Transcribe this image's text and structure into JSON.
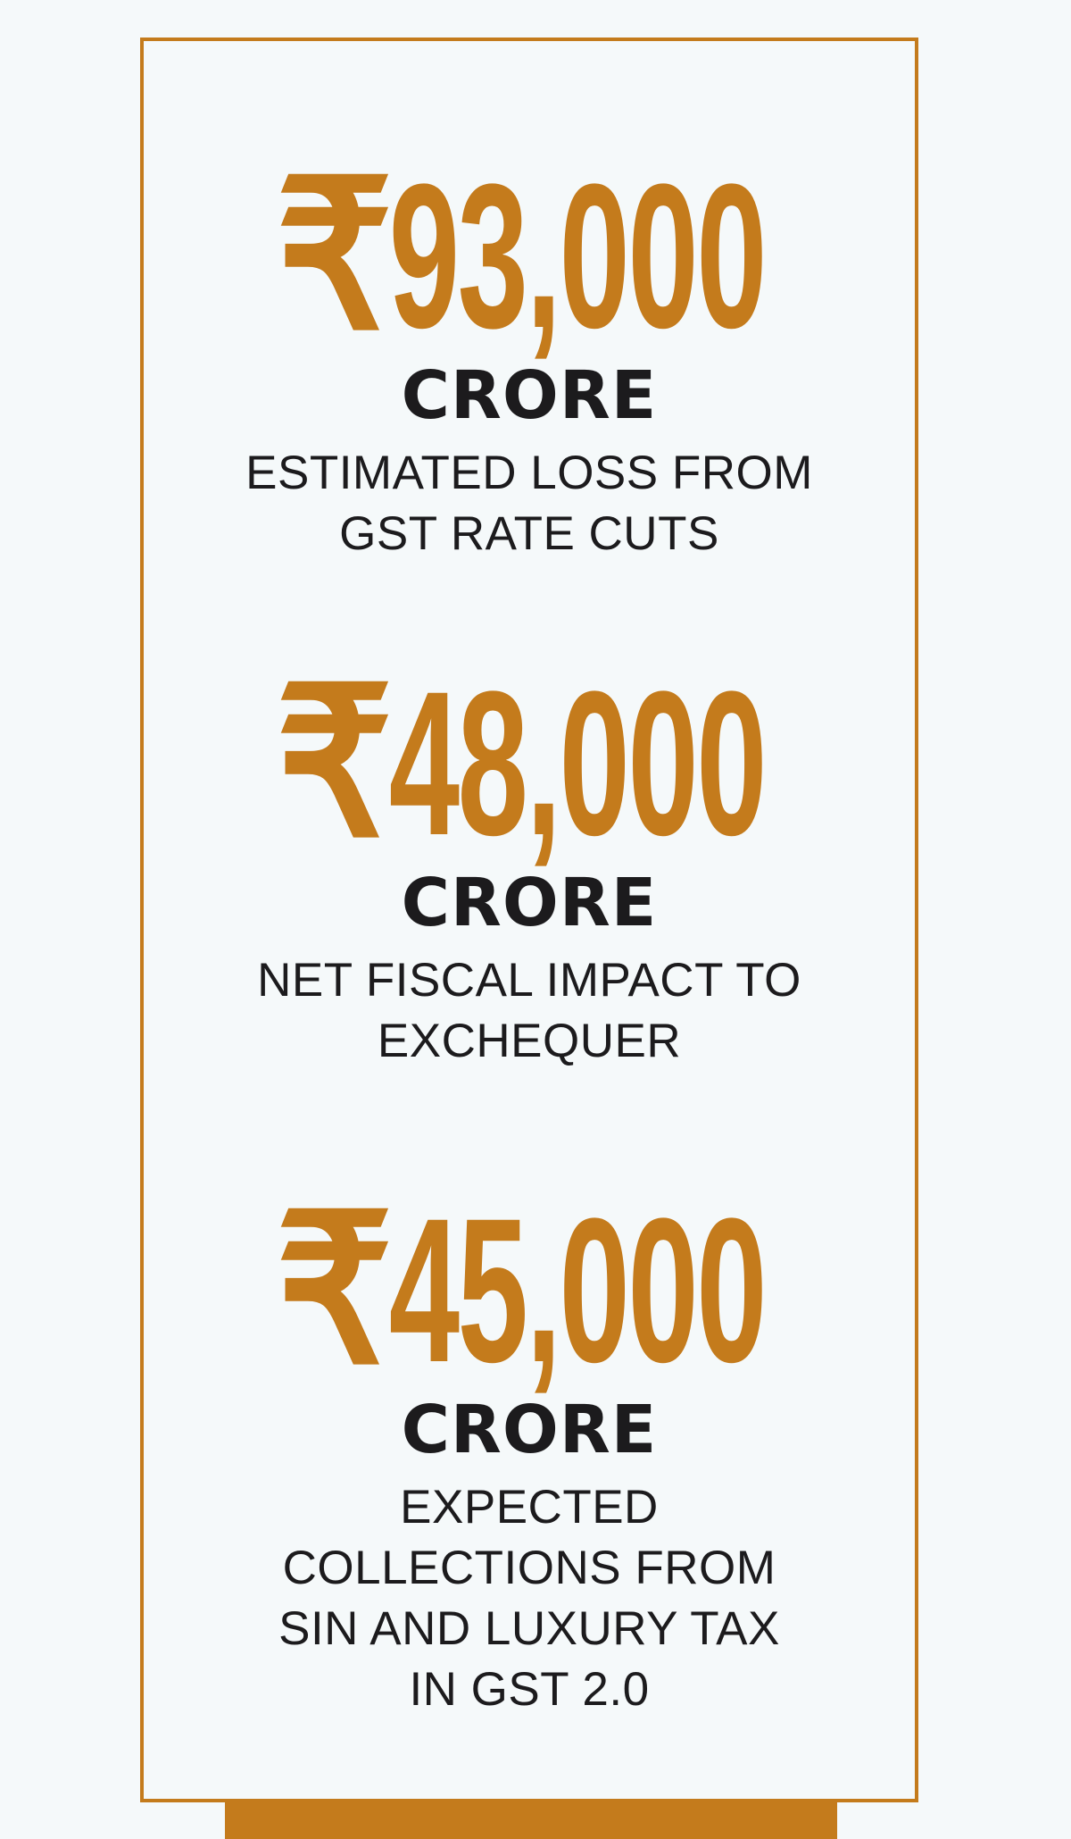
{
  "colors": {
    "accent": "#c47b1c",
    "text": "#1c1b1d",
    "background": "#f5f9fa"
  },
  "stats": [
    {
      "currency_symbol": "₹",
      "amount": "93,000",
      "unit": "CRORE",
      "description": "ESTIMATED LOSS FROM GST RATE CUTS"
    },
    {
      "currency_symbol": "₹",
      "amount": "48,000",
      "unit": "CRORE",
      "description": "NET FISCAL IMPACT TO EXCHEQUER"
    },
    {
      "currency_symbol": "₹",
      "amount": "45,000",
      "unit": "CRORE",
      "description": "EXPECTED COLLECTIONS FROM SIN AND LUXURY TAX IN GST 2.0"
    }
  ]
}
